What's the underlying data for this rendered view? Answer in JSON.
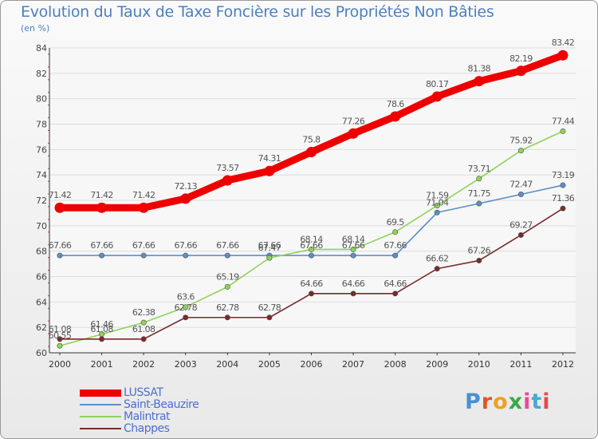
{
  "header": {
    "title": "Evolution du Taux de Taxe Foncière sur les Propriétés Non Bâties",
    "unit": "(en %)"
  },
  "brand": {
    "text": "Proxiti",
    "letter_colors": [
      "#4a8fd4",
      "#e0562a",
      "#f0a020",
      "#3aa84a",
      "#e84a9a",
      "#4aa8d4",
      "#e84a4a"
    ]
  },
  "chart_data": {
    "type": "line",
    "title": "Evolution du Taux de Taxe Foncière sur les Propriétés Non Bâties",
    "ylabel": "(en %)",
    "x": [
      "2000",
      "2001",
      "2002",
      "2003",
      "2004",
      "2005",
      "2006",
      "2007",
      "2008",
      "2009",
      "2010",
      "2011",
      "2012"
    ],
    "ylim": [
      60,
      84
    ],
    "yticks": [
      60,
      62,
      64,
      66,
      68,
      70,
      72,
      74,
      76,
      78,
      80,
      82,
      84
    ],
    "grid": "horizontal",
    "legend_position": "bottom-left",
    "series": [
      {
        "name": "LUSSAT",
        "color": "#ee0000",
        "emphasis": true,
        "values": [
          71.42,
          71.42,
          71.42,
          72.13,
          73.57,
          74.31,
          75.8,
          77.26,
          78.6,
          80.17,
          81.38,
          82.19,
          83.42
        ],
        "labels": [
          "71.42",
          "71.42",
          "71.42",
          "72.13",
          "73.57",
          "74.31",
          "75.8",
          "77.26",
          "78.6",
          "80.17",
          "81.38",
          "82.19",
          "83.42"
        ]
      },
      {
        "name": "Saint-Beauzire",
        "color": "#5b8fc5",
        "emphasis": false,
        "values": [
          67.66,
          67.66,
          67.66,
          67.66,
          67.66,
          67.66,
          67.66,
          67.66,
          67.66,
          71.04,
          71.75,
          72.47,
          73.19
        ],
        "labels": [
          "67.66",
          "67.66",
          "67.66",
          "67.66",
          "67.66",
          "67.66",
          "67.66",
          "67.66",
          "67.66",
          "71.04",
          "71.75",
          "72.47",
          "73.19"
        ]
      },
      {
        "name": "Malintrat",
        "color": "#8fd25a",
        "emphasis": false,
        "values": [
          60.55,
          61.46,
          62.38,
          63.6,
          65.19,
          67.47,
          68.14,
          68.14,
          69.5,
          71.59,
          73.71,
          75.92,
          77.44
        ],
        "labels": [
          "60.55",
          "61.46",
          "62.38",
          "63.6",
          "65.19",
          "67.47",
          "68.14",
          "68.14",
          "69.5",
          "71.59",
          "73.71",
          "75.92",
          "77.44"
        ]
      },
      {
        "name": "Chappes",
        "color": "#7a2a2a",
        "emphasis": false,
        "values": [
          61.08,
          61.08,
          61.08,
          62.78,
          62.78,
          62.78,
          64.66,
          64.66,
          64.66,
          66.62,
          67.26,
          69.27,
          71.36
        ],
        "labels": [
          "61.08",
          "61.08",
          "61.08",
          "62.78",
          "62.78",
          "62.78",
          "64.66",
          "64.66",
          "64.66",
          "66.62",
          "67.26",
          "69.27",
          "71.36"
        ]
      }
    ]
  }
}
